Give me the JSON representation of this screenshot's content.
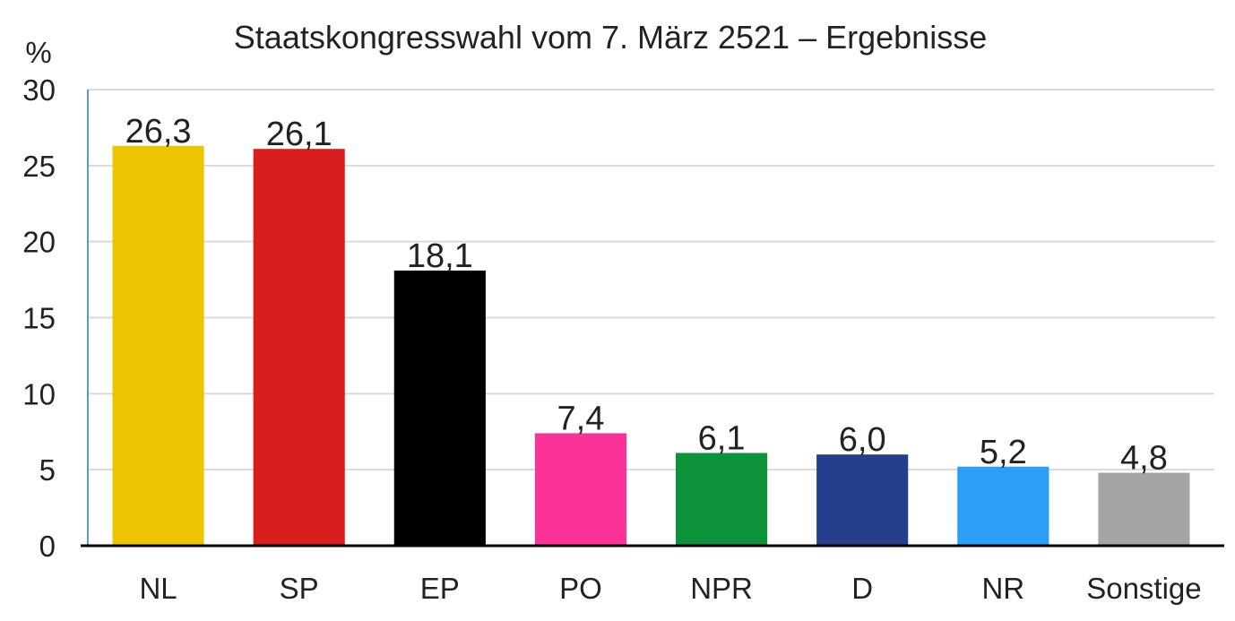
{
  "chart_data": {
    "type": "bar",
    "title": "Staatskongresswahl vom 7. März 2521 – Ergebnisse",
    "ylabel": "%",
    "ylim": [
      0,
      30
    ],
    "yticks": [
      "0",
      "5",
      "10",
      "15",
      "20",
      "25",
      "30"
    ],
    "grid": true,
    "categories": [
      "NL",
      "SP",
      "EP",
      "PO",
      "NPR",
      "D",
      "NR",
      "Sonstige"
    ],
    "values": [
      26.3,
      26.1,
      18.1,
      7.4,
      6.1,
      6.0,
      5.2,
      4.8
    ],
    "value_labels": [
      "26,3",
      "26,1",
      "18,1",
      "7,4",
      "6,1",
      "6,0",
      "5,2",
      "4,8"
    ],
    "colors": [
      "#ecc500",
      "#d81e1e",
      "#000000",
      "#fb3399",
      "#0b923a",
      "#263f8c",
      "#2b9ff8",
      "#a5a5a5"
    ]
  }
}
